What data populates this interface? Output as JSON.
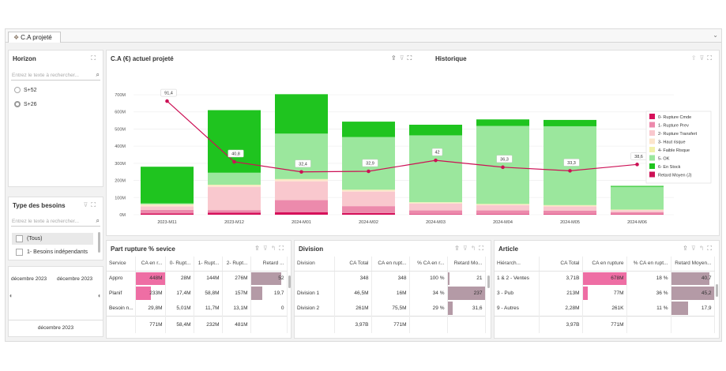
{
  "tab": {
    "label": "C.A projeté"
  },
  "horizon": {
    "title": "Horizon",
    "search_placeholder": "Entrez le texte à rechercher...",
    "options": [
      {
        "label": "S+52",
        "selected": false
      },
      {
        "label": "S+26",
        "selected": true
      }
    ]
  },
  "type_besoins": {
    "title": "Type des besoins",
    "search_placeholder": "Entrez le texte à rechercher...",
    "items": [
      {
        "label": "(Tous)"
      },
      {
        "label": "1- Besoins indépendants"
      }
    ]
  },
  "date_filter": {
    "from": "décembre 2023",
    "to": "décembre 2023",
    "bottom": "décembre 2023"
  },
  "chart_panel": {
    "title": "C.A (€) actuel projeté"
  },
  "historique": {
    "title": "Historique"
  },
  "chart_data": {
    "type": "bar",
    "stacked": true,
    "categories": [
      "2023-M11",
      "2023-M12",
      "2024-M01",
      "2024-M02",
      "2024-M03",
      "2024-M04",
      "2024-M05",
      "2024-M06"
    ],
    "ylim": [
      0,
      700
    ],
    "yticks": [
      "0M",
      "100M",
      "200M",
      "300M",
      "400M",
      "500M",
      "600M",
      "700M"
    ],
    "series": [
      {
        "name": "0- Rupture Cmde",
        "color": "#d6105a",
        "values": [
          8,
          12,
          15,
          10,
          3,
          3,
          3,
          2
        ]
      },
      {
        "name": "1- Rupture Prev",
        "color": "#ec8aac",
        "values": [
          20,
          15,
          70,
          40,
          22,
          22,
          20,
          12
        ]
      },
      {
        "name": "2- Rupture Transfert",
        "color": "#f9c8ce",
        "values": [
          20,
          135,
          110,
          85,
          40,
          30,
          25,
          12
        ]
      },
      {
        "name": "3- Haut risque",
        "color": "#fce5cc",
        "values": [
          10,
          10,
          10,
          8,
          5,
          5,
          5,
          2
        ]
      },
      {
        "name": "4- Faible Risque",
        "color": "#f2f1aa",
        "values": [
          3,
          3,
          3,
          3,
          3,
          3,
          3,
          2
        ]
      },
      {
        "name": "5- OK",
        "color": "#9be79d",
        "values": [
          5,
          70,
          265,
          307,
          390,
          455,
          460,
          133
        ]
      },
      {
        "name": "6-  En Stock",
        "color": "#1fc41f",
        "values": [
          214,
          365,
          230,
          90,
          62,
          38,
          37,
          5
        ]
      }
    ],
    "line": {
      "name": "Retard Moyen (J)",
      "color": "#cc1155",
      "values": [
        91.4,
        40.8,
        32.4,
        32.9,
        42,
        36.3,
        33.3,
        38.6
      ],
      "labels": [
        "91,4",
        "40,8",
        "32,4",
        "32,9",
        "42",
        "36,3",
        "33,3",
        "38,6"
      ]
    }
  },
  "rupture": {
    "title": "Part rupture % sevice",
    "headers": [
      "Service",
      "CA en r...",
      "0- Rupt...",
      "1- Rupt...",
      "2- Rupt...",
      "Retard ..."
    ],
    "rows": [
      {
        "cells": [
          "Appro",
          "448M",
          "28M",
          "144M",
          "276M",
          "52"
        ],
        "bar": 1.0,
        "retard": 0.85
      },
      {
        "cells": [
          "Planif",
          "233M",
          "17,4M",
          "58,8M",
          "157M",
          "19,7"
        ],
        "bar": 0.52,
        "retard": 0.32
      },
      {
        "cells": [
          "Besoin n...",
          "29,8M",
          "5,01M",
          "11,7M",
          "13,1M",
          "0"
        ],
        "bar": 0,
        "retard": 0
      }
    ],
    "totals": [
      "",
      "771M",
      "58,4M",
      "232M",
      "481M",
      ""
    ]
  },
  "division": {
    "title": "Division",
    "headers": [
      "Division",
      "CA Total",
      "CA en rupt...",
      "% CA en r...",
      "Retard Mo..."
    ],
    "rows": [
      {
        "cells": [
          "",
          "348",
          "348",
          "100 %",
          "21"
        ],
        "retard": 0.06
      },
      {
        "cells": [
          "Division 1",
          "46,5M",
          "16M",
          "34 %",
          "237"
        ],
        "retard": 1.0
      },
      {
        "cells": [
          "Division 2",
          "261M",
          "75,5M",
          "29 %",
          "31,6"
        ],
        "retard": 0.13
      }
    ],
    "totals": [
      "",
      "3,97B",
      "771M",
      "",
      ""
    ]
  },
  "article": {
    "title": "Article",
    "headers": [
      "Hiérarch...",
      "CA Total",
      "CA en rupture",
      "% CA en rupt...",
      "Retard Moyen..."
    ],
    "rows": [
      {
        "cells": [
          "1 & 2 - Ventes",
          "3,71B",
          "678M",
          "18 %",
          "40,7"
        ],
        "bar": 1.0,
        "retard": 0.9
      },
      {
        "cells": [
          "3 - Pub",
          "213M",
          "77M",
          "36 %",
          "45,2"
        ],
        "bar": 0.11,
        "retard": 1.0
      },
      {
        "cells": [
          "9 - Autres",
          "2,28M",
          "261K",
          "11 %",
          "17,9"
        ],
        "bar": 0,
        "retard": 0.4
      }
    ],
    "totals": [
      "",
      "3,97B",
      "771M",
      "",
      ""
    ]
  }
}
